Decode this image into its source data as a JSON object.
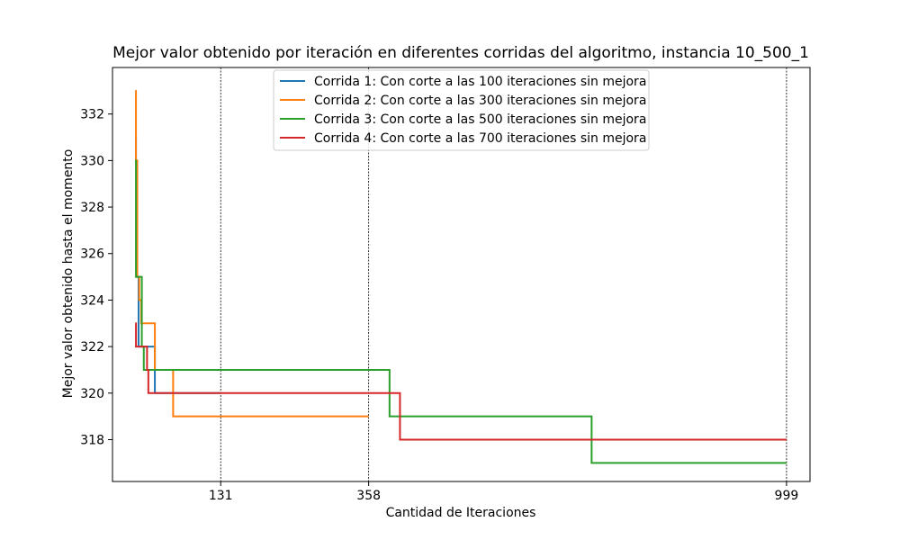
{
  "chart_data": {
    "type": "line",
    "title": "Mejor valor obtenido por iteración en diferentes corridas del algoritmo, instancia 10_500_1",
    "xlabel": "Cantidad de Iteraciones",
    "ylabel": "Mejor valor obtenido hasta el momento",
    "xlim": [
      -35,
      1035
    ],
    "ylim": [
      316.2,
      334.0
    ],
    "xticks": [
      131,
      358,
      999
    ],
    "yticks": [
      318,
      320,
      322,
      324,
      326,
      328,
      330,
      332
    ],
    "vlines": [
      131,
      358,
      999
    ],
    "grid": false,
    "legend_position": "top-center",
    "series": [
      {
        "name": "Corrida 1: Con corte a las 100 iteraciones sin mejora",
        "color": "#1f77b4",
        "x": [
          0,
          1,
          1,
          2,
          2,
          5,
          5,
          30,
          30,
          131
        ],
        "y": [
          331,
          331,
          330,
          330,
          325,
          325,
          322,
          322,
          320,
          320
        ]
      },
      {
        "name": "Corrida 2: Con corte a las 300 iteraciones sin mejora",
        "color": "#ff7f0e",
        "x": [
          0,
          1,
          1,
          3,
          3,
          6,
          6,
          9,
          9,
          30,
          30,
          58,
          58,
          358
        ],
        "y": [
          333,
          333,
          330,
          330,
          325,
          325,
          324,
          324,
          323,
          323,
          321,
          321,
          319,
          319
        ]
      },
      {
        "name": "Corrida 3: Con corte a las 500 iteraciones sin mejora",
        "color": "#2ca02c",
        "x": [
          0,
          1,
          1,
          3,
          3,
          10,
          10,
          13,
          13,
          390,
          390,
          700,
          700,
          999
        ],
        "y": [
          330,
          330,
          325,
          325,
          325,
          325,
          322,
          322,
          321,
          321,
          319,
          319,
          317,
          317
        ]
      },
      {
        "name": "Corrida 4: Con corte a las 700 iteraciones sin mejora",
        "color": "#d62728",
        "x": [
          0,
          1,
          1,
          18,
          18,
          20,
          20,
          25,
          25,
          406,
          406,
          999
        ],
        "y": [
          323,
          323,
          322,
          322,
          321,
          321,
          320,
          320,
          320,
          320,
          318,
          318
        ]
      }
    ]
  }
}
